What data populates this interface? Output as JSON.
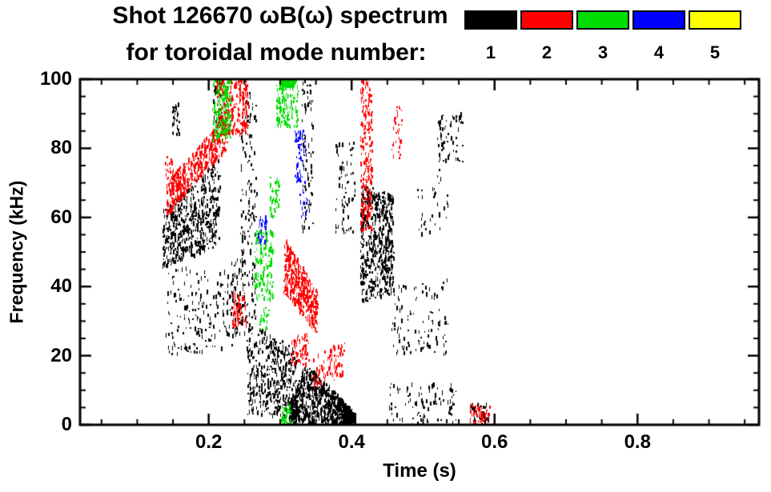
{
  "chart_data": {
    "type": "scatter",
    "title_line1": "Shot 126670 ωB(ω) spectrum",
    "title_line2": "for toroidal mode number:",
    "xlabel": "Time (s)",
    "ylabel": "Frequency (kHz)",
    "xlim": [
      0.02,
      0.97
    ],
    "ylim": [
      0,
      100
    ],
    "x_major_ticks": [
      {
        "value": 0.2,
        "label": "0.2"
      },
      {
        "value": 0.4,
        "label": "0.4"
      },
      {
        "value": 0.6,
        "label": "0.6"
      },
      {
        "value": 0.8,
        "label": "0.8"
      }
    ],
    "y_major_ticks": [
      {
        "value": 0,
        "label": "0"
      },
      {
        "value": 20,
        "label": "20"
      },
      {
        "value": 40,
        "label": "40"
      },
      {
        "value": 60,
        "label": "60"
      },
      {
        "value": 80,
        "label": "80"
      },
      {
        "value": 100,
        "label": "100"
      }
    ],
    "x_minor_step": 0.05,
    "y_minor_step": 5,
    "grid": false,
    "legend_position": "top-right",
    "seed": 1337,
    "cluster_format": "[t_start, t_end, f_low_at_start, f_low_at_end, f_high_at_start, f_high_at_end, n_points]",
    "series": [
      {
        "name": "toroidal mode n=1",
        "label": "1",
        "color": "#000000",
        "clusters": [
          [
            0.135,
            0.215,
            45,
            52,
            62,
            77,
            550
          ],
          [
            0.14,
            0.235,
            20,
            22,
            45,
            48,
            180
          ],
          [
            0.148,
            0.158,
            84,
            84,
            93,
            93,
            35
          ],
          [
            0.205,
            0.218,
            86,
            86,
            100,
            100,
            45
          ],
          [
            0.244,
            0.266,
            30,
            30,
            96,
            96,
            150
          ],
          [
            0.253,
            0.322,
            3,
            2,
            30,
            22,
            420
          ],
          [
            0.312,
            0.335,
            0,
            0,
            6,
            18,
            250
          ],
          [
            0.335,
            0.405,
            0,
            0,
            18,
            3,
            650
          ],
          [
            0.33,
            0.345,
            55,
            55,
            100,
            100,
            80
          ],
          [
            0.375,
            0.405,
            55,
            55,
            82,
            82,
            70
          ],
          [
            0.412,
            0.458,
            35,
            38,
            70,
            66,
            520
          ],
          [
            0.455,
            0.535,
            20,
            20,
            42,
            42,
            110
          ],
          [
            0.45,
            0.545,
            0,
            0,
            12,
            12,
            90
          ],
          [
            0.52,
            0.555,
            76,
            76,
            90,
            90,
            60
          ],
          [
            0.49,
            0.535,
            55,
            55,
            75,
            75,
            35
          ],
          [
            0.565,
            0.592,
            0,
            0,
            6,
            6,
            40
          ],
          [
            0.23,
            0.25,
            25,
            25,
            48,
            48,
            70
          ]
        ]
      },
      {
        "name": "toroidal mode n=2",
        "label": "2",
        "color": "#ff0000",
        "clusters": [
          [
            0.138,
            0.15,
            68,
            68,
            78,
            78,
            25
          ],
          [
            0.14,
            0.225,
            60,
            80,
            70,
            90,
            420
          ],
          [
            0.21,
            0.255,
            84,
            84,
            100,
            100,
            230
          ],
          [
            0.232,
            0.252,
            28,
            28,
            38,
            38,
            70
          ],
          [
            0.305,
            0.352,
            38,
            26,
            55,
            38,
            380
          ],
          [
            0.315,
            0.34,
            17,
            17,
            26,
            26,
            60
          ],
          [
            0.345,
            0.39,
            10,
            14,
            20,
            24,
            80
          ],
          [
            0.412,
            0.428,
            56,
            56,
            100,
            100,
            220
          ],
          [
            0.455,
            0.47,
            76,
            76,
            92,
            92,
            35
          ],
          [
            0.565,
            0.592,
            0,
            0,
            6,
            6,
            55
          ]
        ]
      },
      {
        "name": "toroidal mode n=3",
        "label": "3",
        "color": "#00dd00",
        "clusters": [
          [
            0.205,
            0.23,
            82,
            82,
            100,
            100,
            170
          ],
          [
            0.264,
            0.29,
            36,
            36,
            56,
            56,
            130
          ],
          [
            0.294,
            0.325,
            86,
            86,
            100,
            100,
            140
          ],
          [
            0.3,
            0.318,
            97,
            97,
            100,
            100,
            50
          ],
          [
            0.285,
            0.298,
            60,
            60,
            72,
            72,
            45
          ],
          [
            0.3,
            0.315,
            0,
            0,
            6,
            6,
            30
          ],
          [
            0.27,
            0.285,
            27,
            27,
            34,
            34,
            18
          ]
        ]
      },
      {
        "name": "toroidal mode n=4",
        "label": "4",
        "color": "#0000ff",
        "clusters": [
          [
            0.32,
            0.335,
            70,
            70,
            85,
            85,
            55
          ],
          [
            0.268,
            0.28,
            52,
            52,
            60,
            60,
            35
          ],
          [
            0.325,
            0.338,
            60,
            60,
            68,
            68,
            18
          ]
        ]
      },
      {
        "name": "toroidal mode n=5",
        "label": "5",
        "color": "#ffff00",
        "clusters": []
      }
    ]
  }
}
